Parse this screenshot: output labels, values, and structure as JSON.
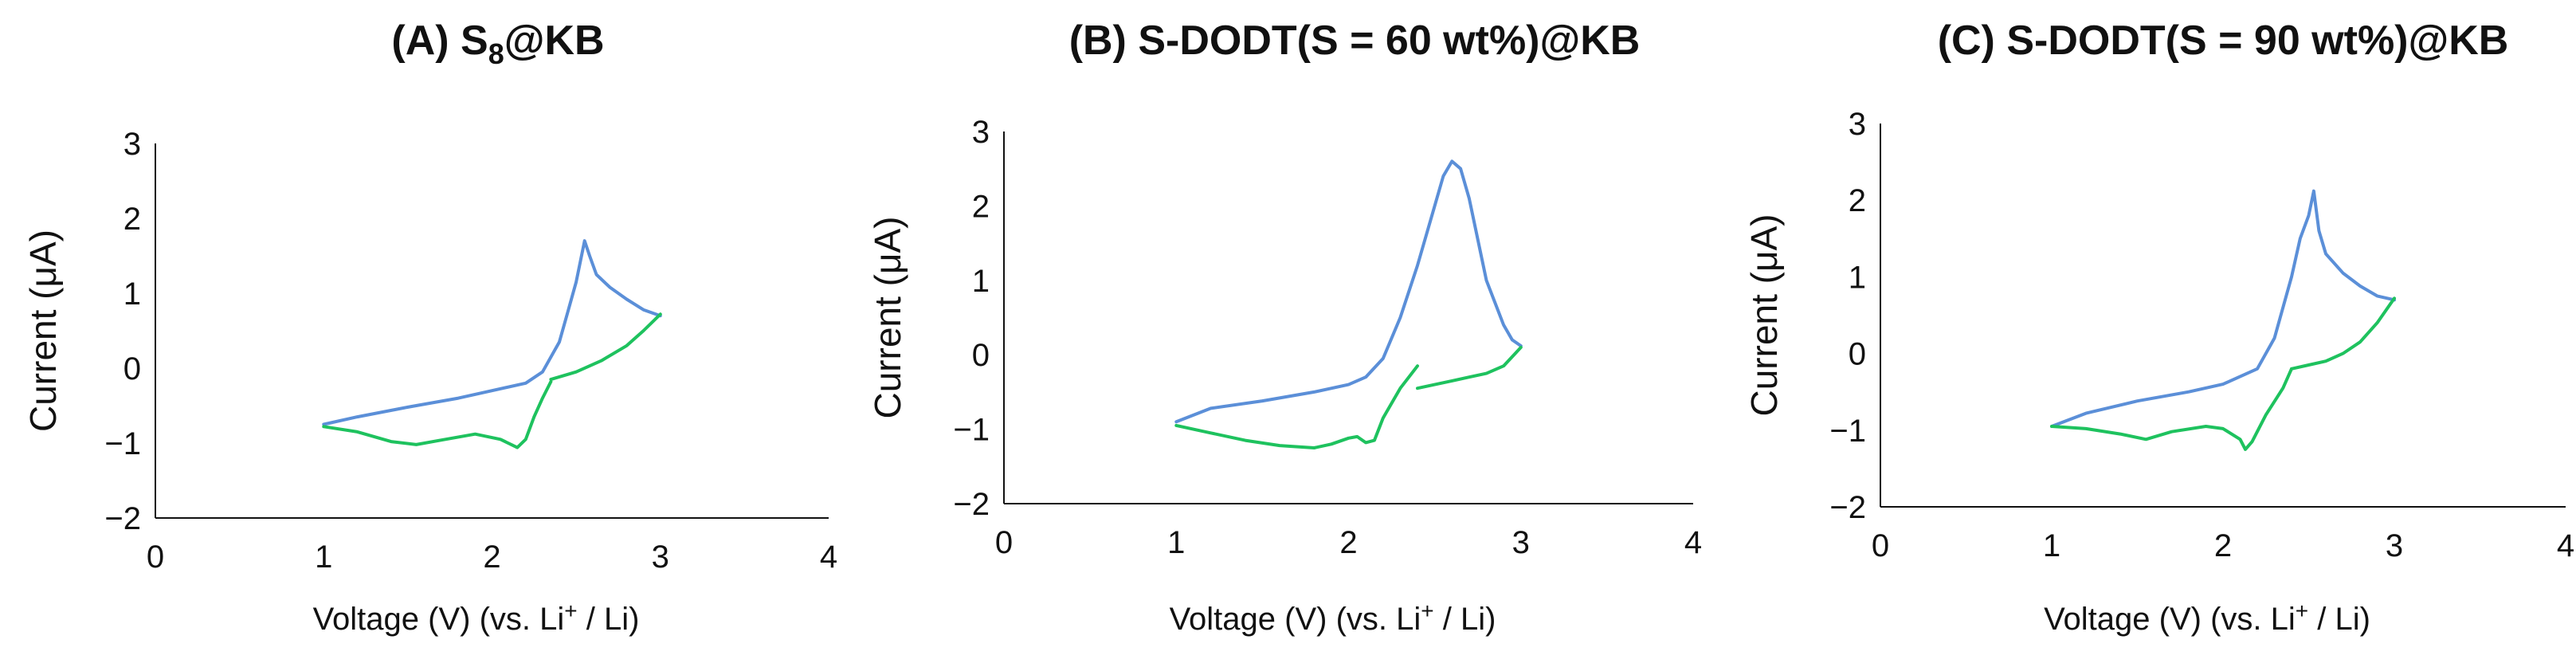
{
  "colors": {
    "oxidation": "#5b8fd8",
    "reduction": "#1ec25e",
    "axis": "#111111"
  },
  "chart_data": [
    {
      "type": "line",
      "title": "(A) S8@KB",
      "title_parts": {
        "prefix": "(A) S",
        "subscript": "8",
        "suffix": "@KB"
      },
      "xlabel": "Voltage (V) (vs. Li+ / Li)",
      "xlabel_parts": {
        "prefix": "Voltage (V) (vs. Li",
        "sup": "+",
        "suffix": " / Li)"
      },
      "ylabel": "Current (μA)",
      "xlim": [
        0,
        4
      ],
      "ylim": [
        -2,
        3
      ],
      "xticks": [
        "0",
        "1",
        "2",
        "3",
        "4"
      ],
      "yticks": [
        "−2",
        "−1",
        "0",
        "1",
        "2",
        "3"
      ],
      "grid": false,
      "series": [
        {
          "color_key": "oxidation",
          "x": [
            1.0,
            1.2,
            1.5,
            1.8,
            2.0,
            2.2,
            2.3,
            2.4,
            2.45,
            2.5,
            2.55,
            2.58,
            2.62,
            2.7,
            2.8,
            2.9,
            3.0
          ],
          "y": [
            -0.75,
            -0.65,
            -0.52,
            -0.4,
            -0.3,
            -0.2,
            -0.05,
            0.35,
            0.75,
            1.15,
            1.7,
            1.5,
            1.25,
            1.08,
            0.92,
            0.78,
            0.7
          ]
        },
        {
          "color_key": "reduction",
          "x": [
            1.0,
            1.2,
            1.4,
            1.55,
            1.7,
            1.9,
            2.05,
            2.15,
            2.2,
            2.25,
            2.3,
            2.35
          ],
          "y": [
            -0.78,
            -0.85,
            -0.98,
            -1.02,
            -0.96,
            -0.88,
            -0.95,
            -1.06,
            -0.95,
            -0.65,
            -0.4,
            -0.18
          ]
        },
        {
          "color_key": "reduction",
          "x": [
            2.35,
            2.5,
            2.65,
            2.8,
            2.9,
            3.0
          ],
          "y": [
            -0.15,
            -0.05,
            0.1,
            0.3,
            0.5,
            0.72
          ]
        }
      ]
    },
    {
      "type": "line",
      "title": "(B) S-DODT(S = 60 wt%)@KB",
      "xlabel": "Voltage (V) (vs. Li+ / Li)",
      "xlabel_parts": {
        "prefix": "Voltage (V) (vs. Li",
        "sup": "+",
        "suffix": " / Li)"
      },
      "ylabel": "Current (μA)",
      "xlim": [
        0,
        4
      ],
      "ylim": [
        -2,
        3
      ],
      "xticks": [
        "0",
        "1",
        "2",
        "3",
        "4"
      ],
      "yticks": [
        "−2",
        "−1",
        "0",
        "1",
        "2",
        "3"
      ],
      "grid": false,
      "series": [
        {
          "color_key": "oxidation",
          "x": [
            1.0,
            1.2,
            1.5,
            1.8,
            2.0,
            2.1,
            2.2,
            2.3,
            2.4,
            2.5,
            2.55,
            2.6,
            2.65,
            2.7,
            2.8,
            2.9,
            2.95,
            3.0
          ],
          "y": [
            -0.9,
            -0.72,
            -0.62,
            -0.5,
            -0.4,
            -0.3,
            -0.05,
            0.5,
            1.2,
            2.0,
            2.4,
            2.6,
            2.5,
            2.1,
            1.0,
            0.4,
            0.2,
            0.12
          ]
        },
        {
          "color_key": "reduction",
          "x": [
            1.0,
            1.2,
            1.4,
            1.6,
            1.8,
            1.9,
            2.0,
            2.05,
            2.1,
            2.15,
            2.2,
            2.3,
            2.4
          ],
          "y": [
            -0.95,
            -1.05,
            -1.15,
            -1.22,
            -1.25,
            -1.2,
            -1.12,
            -1.1,
            -1.18,
            -1.15,
            -0.85,
            -0.45,
            -0.15
          ]
        },
        {
          "color_key": "reduction",
          "x": [
            2.4,
            2.5,
            2.6,
            2.7,
            2.8,
            2.9,
            3.0
          ],
          "y": [
            -0.45,
            -0.4,
            -0.35,
            -0.3,
            -0.25,
            -0.15,
            0.1
          ]
        }
      ]
    },
    {
      "type": "line",
      "title": "(C) S-DODT(S = 90 wt%)@KB",
      "xlabel": "Voltage (V) (vs. Li+ / Li)",
      "xlabel_parts": {
        "prefix": "Voltage (V) (vs. Li",
        "sup": "+",
        "suffix": " / Li)"
      },
      "ylabel": "Current (μA)",
      "xlim": [
        0,
        4
      ],
      "ylim": [
        -2,
        3
      ],
      "xticks": [
        "0",
        "1",
        "2",
        "3",
        "4"
      ],
      "yticks": [
        "−2",
        "−1",
        "0",
        "1",
        "2",
        "3"
      ],
      "grid": false,
      "series": [
        {
          "color_key": "oxidation",
          "x": [
            1.0,
            1.2,
            1.5,
            1.8,
            2.0,
            2.2,
            2.3,
            2.4,
            2.45,
            2.5,
            2.53,
            2.56,
            2.6,
            2.7,
            2.8,
            2.9,
            3.0
          ],
          "y": [
            -0.95,
            -0.78,
            -0.62,
            -0.5,
            -0.4,
            -0.2,
            0.2,
            1.0,
            1.5,
            1.8,
            2.12,
            1.6,
            1.3,
            1.05,
            0.88,
            0.75,
            0.7
          ]
        },
        {
          "color_key": "reduction",
          "x": [
            1.0,
            1.2,
            1.4,
            1.55,
            1.7,
            1.9,
            2.0,
            2.1,
            2.13,
            2.17,
            2.25,
            2.35,
            2.4
          ],
          "y": [
            -0.95,
            -0.98,
            -1.05,
            -1.12,
            -1.02,
            -0.95,
            -0.98,
            -1.12,
            -1.25,
            -1.15,
            -0.8,
            -0.45,
            -0.2
          ]
        },
        {
          "color_key": "reduction",
          "x": [
            2.4,
            2.5,
            2.6,
            2.7,
            2.8,
            2.9,
            3.0
          ],
          "y": [
            -0.2,
            -0.15,
            -0.1,
            0.0,
            0.15,
            0.4,
            0.72
          ]
        }
      ]
    }
  ]
}
